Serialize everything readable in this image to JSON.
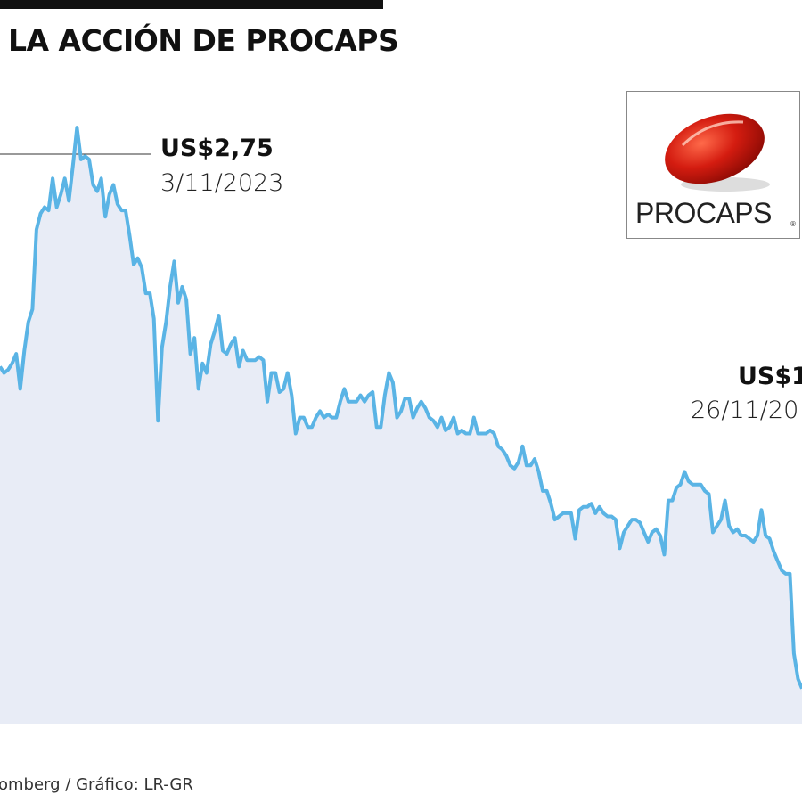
{
  "title": "LA ACCIÓN DE PROCAPS",
  "source": "omberg / Gráfico: LR-GR",
  "logo": {
    "text": "PROCAPS",
    "registered": "®",
    "capsule_color": "#d41c10"
  },
  "colors": {
    "line": "#5ab4e5",
    "fill": "#e8ecf6",
    "text": "#111111"
  },
  "chart_data": {
    "type": "area",
    "title": "LA ACCIÓN DE PROCAPS",
    "xlabel": "",
    "ylabel": "",
    "ylim": [
      0.88,
      3.15
    ],
    "grid": false,
    "annotations": [
      {
        "value": "US$2,75",
        "date": "3/11/2023"
      },
      {
        "value": "US$1",
        "date": "26/11/20"
      }
    ],
    "values": [
      2.0,
      1.98,
      1.99,
      2.01,
      2.04,
      1.93,
      2.05,
      2.14,
      2.18,
      2.43,
      2.48,
      2.5,
      2.49,
      2.59,
      2.5,
      2.54,
      2.59,
      2.52,
      2.63,
      2.75,
      2.65,
      2.66,
      2.65,
      2.57,
      2.55,
      2.59,
      2.47,
      2.54,
      2.57,
      2.51,
      2.49,
      2.49,
      2.41,
      2.32,
      2.34,
      2.31,
      2.23,
      2.23,
      2.15,
      1.83,
      2.06,
      2.14,
      2.25,
      2.33,
      2.2,
      2.25,
      2.21,
      2.04,
      2.09,
      1.93,
      2.01,
      1.98,
      2.07,
      2.11,
      2.16,
      2.05,
      2.04,
      2.07,
      2.09,
      2.0,
      2.05,
      2.02,
      2.02,
      2.02,
      2.03,
      2.02,
      1.89,
      1.98,
      1.98,
      1.92,
      1.93,
      1.98,
      1.91,
      1.79,
      1.84,
      1.84,
      1.81,
      1.81,
      1.84,
      1.86,
      1.84,
      1.85,
      1.84,
      1.84,
      1.89,
      1.93,
      1.89,
      1.89,
      1.89,
      1.91,
      1.89,
      1.91,
      1.92,
      1.81,
      1.81,
      1.91,
      1.98,
      1.95,
      1.84,
      1.86,
      1.9,
      1.9,
      1.84,
      1.87,
      1.89,
      1.87,
      1.84,
      1.83,
      1.81,
      1.84,
      1.8,
      1.81,
      1.84,
      1.79,
      1.8,
      1.79,
      1.79,
      1.84,
      1.79,
      1.79,
      1.79,
      1.8,
      1.79,
      1.75,
      1.74,
      1.72,
      1.69,
      1.68,
      1.7,
      1.75,
      1.69,
      1.69,
      1.71,
      1.67,
      1.61,
      1.61,
      1.57,
      1.52,
      1.53,
      1.54,
      1.54,
      1.54,
      1.46,
      1.55,
      1.56,
      1.56,
      1.57,
      1.54,
      1.56,
      1.54,
      1.53,
      1.53,
      1.52,
      1.43,
      1.48,
      1.5,
      1.52,
      1.52,
      1.51,
      1.48,
      1.45,
      1.48,
      1.49,
      1.47,
      1.41,
      1.58,
      1.58,
      1.62,
      1.63,
      1.67,
      1.64,
      1.63,
      1.63,
      1.63,
      1.61,
      1.6,
      1.48,
      1.5,
      1.52,
      1.58,
      1.5,
      1.48,
      1.49,
      1.47,
      1.47,
      1.46,
      1.45,
      1.47,
      1.55,
      1.47,
      1.46,
      1.42,
      1.39,
      1.36,
      1.35,
      1.35,
      1.1,
      1.02,
      0.99
    ]
  }
}
